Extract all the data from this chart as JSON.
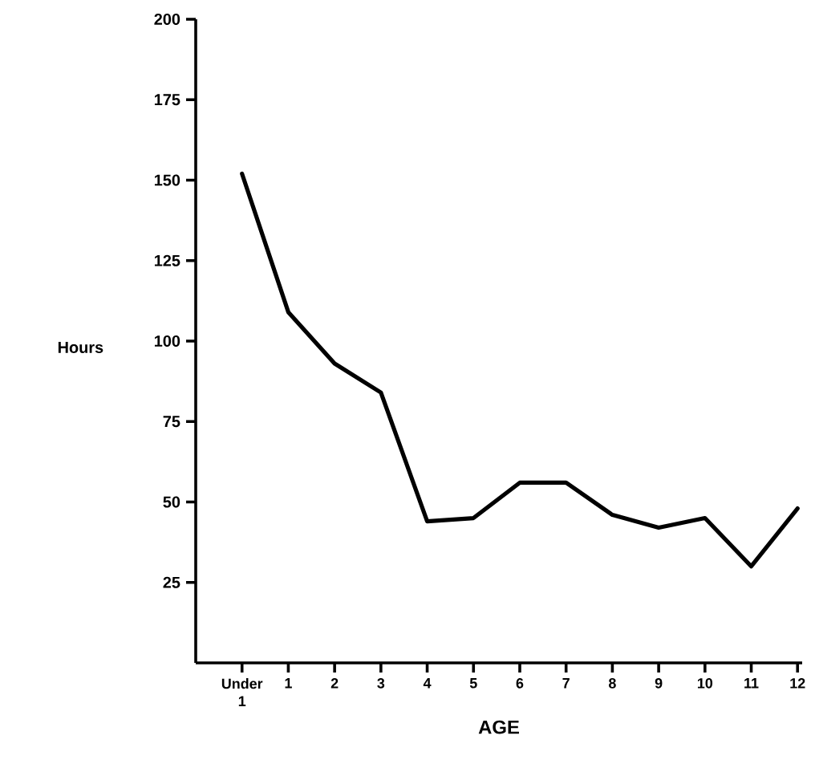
{
  "chart_data": {
    "type": "line",
    "xlabel": "AGE",
    "ylabel": "Hours",
    "categories": [
      "Under 1",
      "1",
      "2",
      "3",
      "4",
      "5",
      "6",
      "7",
      "8",
      "9",
      "10",
      "11",
      "12"
    ],
    "values": [
      152,
      109,
      93,
      84,
      44,
      45,
      56,
      56,
      46,
      42,
      45,
      30,
      48
    ],
    "color": "#000000",
    "ylim": [
      0,
      200
    ],
    "yticks": [
      25,
      50,
      75,
      100,
      125,
      150,
      175,
      200
    ]
  }
}
